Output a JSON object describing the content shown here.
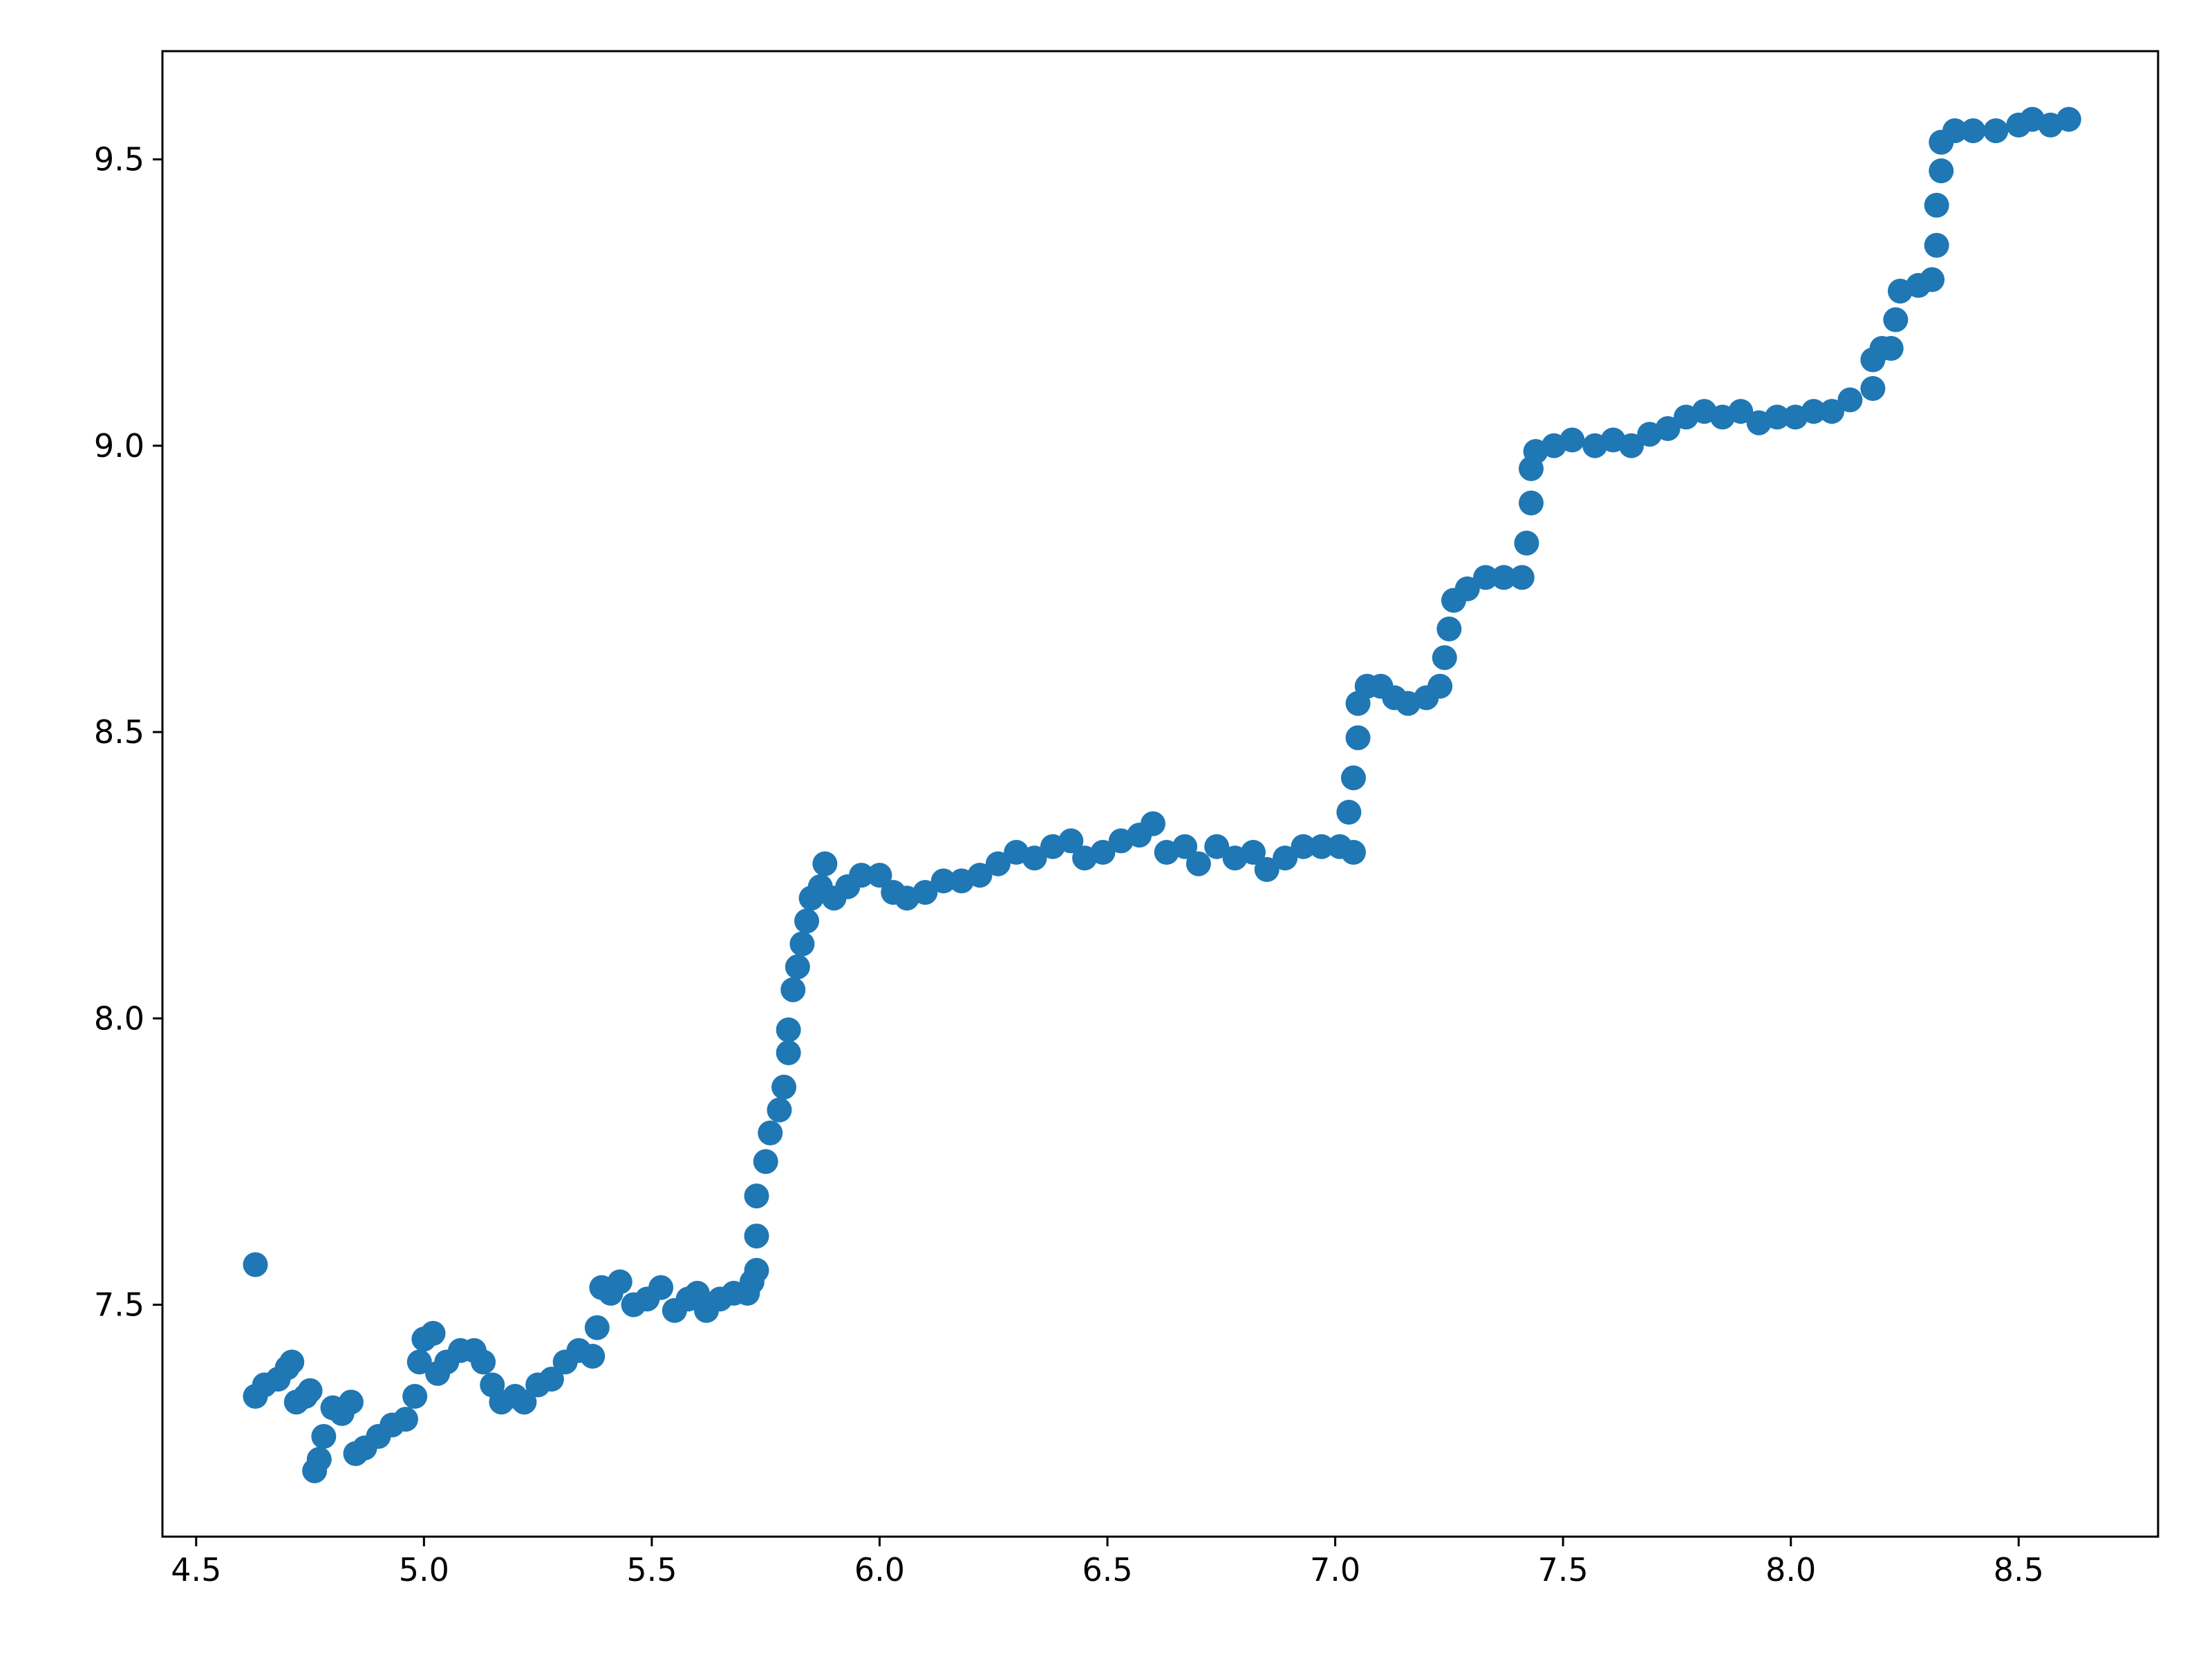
{
  "chart_data": {
    "type": "scatter",
    "color": "#1f77b4",
    "x": [
      4.63,
      4.63,
      4.65,
      4.68,
      4.7,
      4.71,
      4.72,
      4.74,
      4.75,
      4.76,
      4.77,
      4.78,
      4.8,
      4.82,
      4.84,
      4.85,
      4.87,
      4.9,
      4.93,
      4.96,
      4.98,
      4.99,
      5.0,
      5.02,
      5.03,
      5.05,
      5.08,
      5.11,
      5.13,
      5.15,
      5.17,
      5.2,
      5.22,
      5.25,
      5.28,
      5.31,
      5.34,
      5.37,
      5.38,
      5.39,
      5.41,
      5.43,
      5.46,
      5.49,
      5.52,
      5.55,
      5.58,
      5.6,
      5.62,
      5.65,
      5.68,
      5.71,
      5.72,
      5.73,
      5.73,
      5.73,
      5.75,
      5.76,
      5.78,
      5.79,
      5.8,
      5.8,
      5.81,
      5.82,
      5.83,
      5.84,
      5.85,
      5.87,
      5.88,
      5.9,
      5.93,
      5.96,
      6.0,
      6.03,
      6.06,
      6.1,
      6.14,
      6.18,
      6.22,
      6.26,
      6.3,
      6.34,
      6.38,
      6.42,
      6.45,
      6.49,
      6.53,
      6.57,
      6.6,
      6.63,
      6.67,
      6.7,
      6.74,
      6.78,
      6.82,
      6.85,
      6.89,
      6.93,
      6.97,
      7.01,
      7.04,
      7.03,
      7.04,
      7.05,
      7.05,
      7.07,
      7.1,
      7.13,
      7.16,
      7.2,
      7.23,
      7.24,
      7.25,
      7.26,
      7.29,
      7.33,
      7.37,
      7.41,
      7.42,
      7.43,
      7.43,
      7.44,
      7.48,
      7.52,
      7.57,
      7.61,
      7.65,
      7.69,
      7.73,
      7.77,
      7.81,
      7.85,
      7.89,
      7.93,
      7.97,
      8.01,
      8.05,
      8.09,
      8.13,
      8.18,
      8.18,
      8.2,
      8.22,
      8.23,
      8.24,
      8.28,
      8.31,
      8.32,
      8.32,
      8.33,
      8.33,
      8.36,
      8.4,
      8.45,
      8.5,
      8.53,
      8.57,
      8.61
    ],
    "values": [
      7.57,
      7.34,
      7.36,
      7.37,
      7.39,
      7.4,
      7.33,
      7.34,
      7.35,
      7.21,
      7.23,
      7.27,
      7.32,
      7.31,
      7.33,
      7.24,
      7.25,
      7.27,
      7.29,
      7.3,
      7.34,
      7.4,
      7.44,
      7.45,
      7.38,
      7.4,
      7.42,
      7.42,
      7.4,
      7.36,
      7.33,
      7.34,
      7.33,
      7.36,
      7.37,
      7.4,
      7.42,
      7.41,
      7.46,
      7.53,
      7.52,
      7.54,
      7.5,
      7.51,
      7.53,
      7.49,
      7.51,
      7.52,
      7.49,
      7.51,
      7.52,
      7.52,
      7.54,
      7.56,
      7.62,
      7.69,
      7.75,
      7.8,
      7.84,
      7.88,
      7.94,
      7.98,
      8.05,
      8.09,
      8.13,
      8.17,
      8.21,
      8.23,
      8.27,
      8.21,
      8.23,
      8.25,
      8.25,
      8.22,
      8.21,
      8.22,
      8.24,
      8.24,
      8.25,
      8.27,
      8.29,
      8.28,
      8.3,
      8.31,
      8.28,
      8.29,
      8.31,
      8.32,
      8.34,
      8.29,
      8.3,
      8.27,
      8.3,
      8.28,
      8.29,
      8.26,
      8.28,
      8.3,
      8.3,
      8.3,
      8.29,
      8.36,
      8.42,
      8.49,
      8.55,
      8.58,
      8.58,
      8.56,
      8.55,
      8.56,
      8.58,
      8.63,
      8.68,
      8.73,
      8.75,
      8.77,
      8.77,
      8.77,
      8.83,
      8.9,
      8.96,
      8.99,
      9.0,
      9.01,
      9.0,
      9.01,
      9.0,
      9.02,
      9.03,
      9.05,
      9.06,
      9.05,
      9.06,
      9.04,
      9.05,
      9.05,
      9.06,
      9.06,
      9.08,
      9.1,
      9.15,
      9.17,
      9.17,
      9.22,
      9.27,
      9.28,
      9.29,
      9.35,
      9.42,
      9.48,
      9.53,
      9.55,
      9.55,
      9.55,
      9.56,
      9.57,
      9.56,
      9.57
    ],
    "xlim": [
      4.426,
      8.806
    ],
    "ylim": [
      7.095,
      9.689
    ],
    "xticks": [
      4.5,
      {
        "value": 5,
        "label": "5.0"
      },
      5.5,
      {
        "value": 6,
        "label": "6.0"
      },
      6.5,
      {
        "value": 7,
        "label": "7.0"
      },
      7.5,
      {
        "value": 8,
        "label": "8.0"
      },
      8.5
    ],
    "yticks": [
      7.5,
      {
        "value": 8,
        "label": "8.0"
      },
      8.5,
      {
        "value": 9,
        "label": "9.0"
      },
      9.5
    ]
  }
}
